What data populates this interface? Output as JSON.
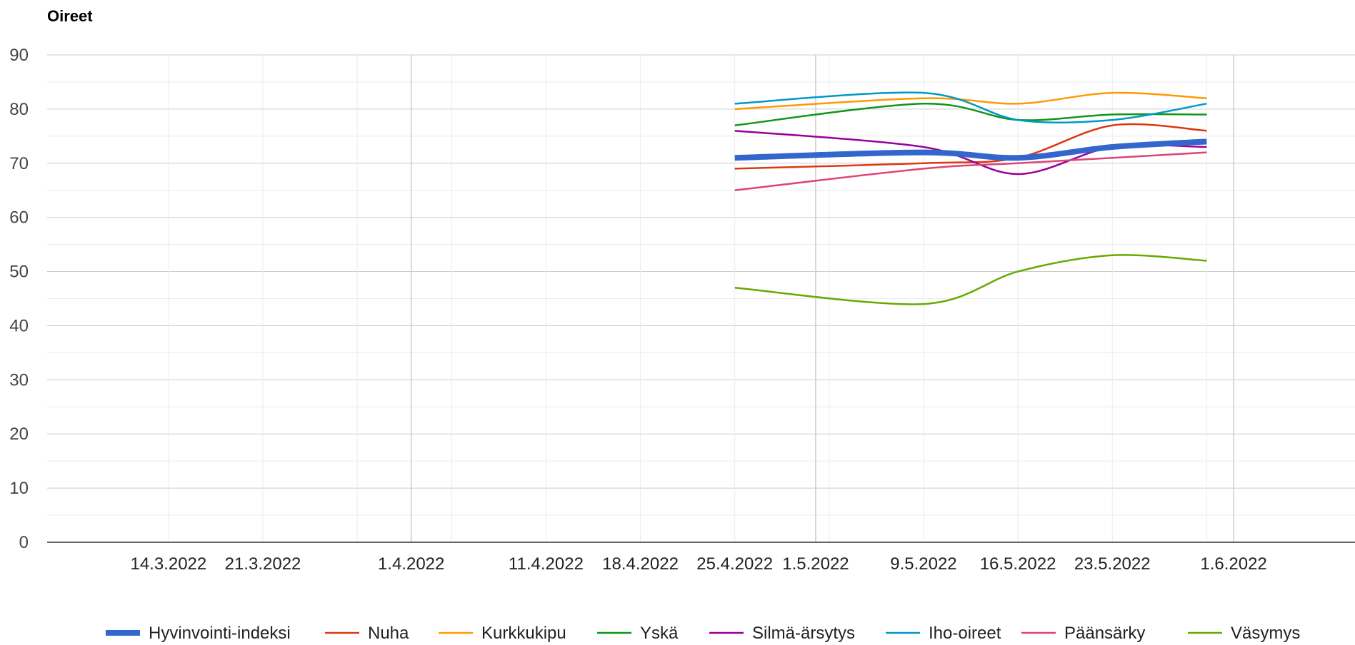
{
  "chart_data": {
    "type": "line",
    "title": "Oireet",
    "xlabel": "",
    "ylabel": "",
    "ylim": [
      0,
      90
    ],
    "yticks": [
      0,
      10,
      20,
      30,
      40,
      50,
      60,
      70,
      80,
      90
    ],
    "xlim": [
      "2022-03-05",
      "2022-06-10"
    ],
    "xticks": [
      {
        "date": "2022-03-14",
        "label": "14.3.2022"
      },
      {
        "date": "2022-03-21",
        "label": "21.3.2022"
      },
      {
        "date": "2022-04-01",
        "label": "1.4.2022"
      },
      {
        "date": "2022-04-11",
        "label": "11.4.2022"
      },
      {
        "date": "2022-04-18",
        "label": "18.4.2022"
      },
      {
        "date": "2022-04-25",
        "label": "25.4.2022"
      },
      {
        "date": "2022-05-01",
        "label": "1.5.2022"
      },
      {
        "date": "2022-05-09",
        "label": "9.5.2022"
      },
      {
        "date": "2022-05-16",
        "label": "16.5.2022"
      },
      {
        "date": "2022-05-23",
        "label": "23.5.2022"
      },
      {
        "date": "2022-06-01",
        "label": "1.6.2022"
      }
    ],
    "x": [
      "2022-04-25",
      "2022-05-09",
      "2022-05-16",
      "2022-05-23",
      "2022-05-30"
    ],
    "grid": true,
    "legend_position": "bottom",
    "series": [
      {
        "name": "Hyvinvointi-indeksi",
        "color": "#3366cc",
        "values": [
          71,
          72,
          71,
          73,
          74
        ]
      },
      {
        "name": "Nuha",
        "color": "#dc3912",
        "values": [
          69,
          70,
          71,
          77,
          76
        ]
      },
      {
        "name": "Kurkkukipu",
        "color": "#ff9900",
        "values": [
          80,
          82,
          81,
          83,
          82
        ]
      },
      {
        "name": "Yskä",
        "color": "#109618",
        "values": [
          77,
          81,
          78,
          79,
          79
        ]
      },
      {
        "name": "Silmä-ärsytys",
        "color": "#990099",
        "values": [
          76,
          73,
          68,
          73,
          73
        ]
      },
      {
        "name": "Iho-oireet",
        "color": "#0099c6",
        "values": [
          81,
          83,
          78,
          78,
          81
        ]
      },
      {
        "name": "Päänsärky",
        "color": "#dd4477",
        "values": [
          65,
          69,
          70,
          71,
          72
        ]
      },
      {
        "name": "Väsymys",
        "color": "#66aa00",
        "values": [
          47,
          44,
          50,
          53,
          52
        ]
      }
    ]
  }
}
